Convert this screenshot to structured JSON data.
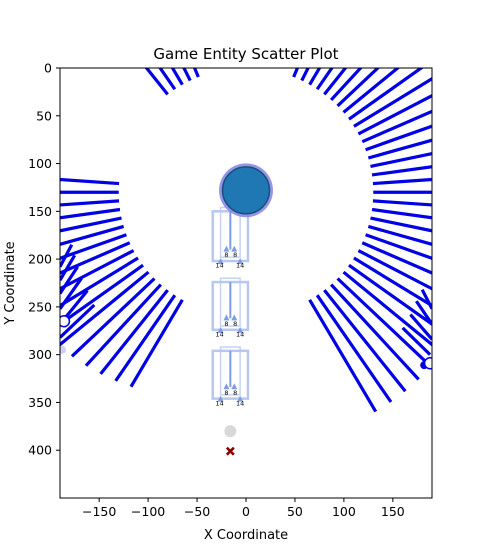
{
  "chart_data": {
    "type": "scatter",
    "title": "Game Entity Scatter Plot",
    "xlabel": "X Coordinate",
    "ylabel": "Y Coordinate",
    "xlim": [
      -190,
      190
    ],
    "ylim": [
      450,
      0
    ],
    "y_inverted": true,
    "x_ticks": [
      -150,
      -100,
      -50,
      0,
      50,
      100,
      150
    ],
    "x_tick_labels": [
      "−150",
      "−100",
      "−50",
      "0",
      "50",
      "100",
      "150"
    ],
    "y_ticks": [
      0,
      50,
      100,
      150,
      200,
      250,
      300,
      350,
      400
    ],
    "y_tick_labels": [
      "0",
      "50",
      "100",
      "150",
      "200",
      "250",
      "300",
      "350",
      "400"
    ],
    "grid": false,
    "colors": {
      "ray": "#0000e6",
      "boss_fill": "#1f77b4",
      "boss_halo": "#8a8ae6",
      "unit_box": "#b7c7f0",
      "unit_triangle": "#7d9ee0",
      "enemy_marker": "#8b0000",
      "faded_circle": "#cccccc"
    },
    "ray_arc": {
      "center": [
        0,
        130
      ],
      "inner_radius": 130,
      "outer_radius_min": 175,
      "start_angle_deg": -60,
      "end_angle_deg": 240,
      "step_deg": 4,
      "left_gap_deg": [
        130,
        175
      ],
      "top_gap_deg": [
        70,
        110
      ]
    },
    "lower_rays_left": [
      {
        "from": [
          -190,
          282
        ],
        "to": [
          -155,
          248
        ]
      },
      {
        "from": [
          -190,
          268
        ],
        "to": [
          -162,
          233
        ]
      },
      {
        "from": [
          -190,
          252
        ],
        "to": [
          -168,
          220
        ]
      },
      {
        "from": [
          -190,
          236
        ],
        "to": [
          -172,
          208
        ]
      },
      {
        "from": [
          -190,
          222
        ],
        "to": [
          -175,
          196
        ]
      },
      {
        "from": [
          -190,
          208
        ],
        "to": [
          -178,
          185
        ]
      }
    ],
    "lower_rays_right": [
      {
        "from": [
          160,
          272
        ],
        "to": [
          188,
          300
        ]
      },
      {
        "from": [
          168,
          258
        ],
        "to": [
          190,
          284
        ]
      },
      {
        "from": [
          174,
          244
        ],
        "to": [
          190,
          268
        ]
      },
      {
        "from": [
          180,
          232
        ],
        "to": [
          190,
          252
        ]
      }
    ],
    "boss": {
      "x": 0,
      "y": 128,
      "radius_units": 24
    },
    "open_circles": [
      {
        "x": -186,
        "y": 265
      },
      {
        "x": 188,
        "y": 309
      }
    ],
    "filled_points": [
      {
        "x": 182,
        "y": 311,
        "color": "#0000e6"
      },
      {
        "x": -188,
        "y": 295,
        "color": "#d0d0f5"
      },
      {
        "x": -16,
        "y": 380,
        "color": "#d8d8d8"
      }
    ],
    "enemy": {
      "x": -16,
      "y": 401,
      "marker": "x"
    },
    "units": [
      {
        "y_top": 150,
        "y_bottom": 202,
        "labels": [
          "8",
          "8",
          "14",
          "14"
        ]
      },
      {
        "y_top": 224,
        "y_bottom": 274,
        "labels": [
          "8",
          "8",
          "14",
          "14"
        ]
      },
      {
        "y_top": 296,
        "y_bottom": 346,
        "labels": [
          "8",
          "8",
          "14",
          "14"
        ]
      }
    ]
  }
}
